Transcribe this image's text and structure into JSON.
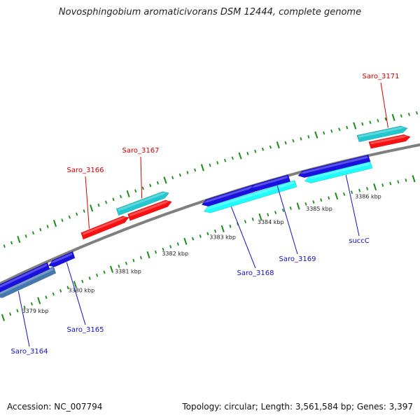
{
  "title": "Novosphingobium aromaticivorans DSM 12444, complete genome",
  "footer": {
    "accession": "Accession: NC_007794",
    "summary": "Topology: circular; Length: 3,561,584 bp; Genes: 3,397"
  },
  "colors": {
    "backbone": "#7f7f7f",
    "tick": "#1a8a1a",
    "label_plus": "#d40000",
    "label_minus": "#1010c0",
    "red": "#ff1010",
    "cyan": "#22c8d0",
    "blue": "#1a10e0",
    "lightcyan": "#20ffff",
    "steel": "#4678b0"
  },
  "scale": {
    "ticks": [
      {
        "label": "3379 kbp"
      },
      {
        "label": "3380 kbp"
      },
      {
        "label": "3381 kbp"
      },
      {
        "label": "3382 kbp"
      },
      {
        "label": "3383 kbp"
      },
      {
        "label": "3384 kbp"
      },
      {
        "label": "3385 kbp"
      },
      {
        "label": "3386 kbp"
      }
    ]
  },
  "genes": [
    {
      "id": "g1",
      "label": "Saro_3164",
      "strand": "minus",
      "color": "steel"
    },
    {
      "id": "g2",
      "label": "",
      "strand": "minus",
      "color": "blue"
    },
    {
      "id": "g3",
      "label": "Saro_3165",
      "strand": "minus",
      "color": "blue"
    },
    {
      "id": "g4",
      "label": "Saro_3166",
      "strand": "plus",
      "color": "red"
    },
    {
      "id": "g5",
      "label": "Saro_3167",
      "strand": "plus",
      "color": "red"
    },
    {
      "id": "g6",
      "label": "",
      "strand": "plus",
      "color": "cyan"
    },
    {
      "id": "g7",
      "label": "Saro_3168",
      "strand": "minus",
      "color": "lightcyan"
    },
    {
      "id": "g8",
      "label": "",
      "strand": "minus",
      "color": "blue"
    },
    {
      "id": "g9",
      "label": "Saro_3169",
      "strand": "minus",
      "color": "blue"
    },
    {
      "id": "g10",
      "label": "succC",
      "strand": "minus",
      "color": "lightcyan"
    },
    {
      "id": "g11",
      "label": "",
      "strand": "minus",
      "color": "blue"
    },
    {
      "id": "g12",
      "label": "Saro_3171",
      "strand": "plus",
      "color": "red"
    },
    {
      "id": "g13",
      "label": "",
      "strand": "plus",
      "color": "cyan"
    }
  ]
}
